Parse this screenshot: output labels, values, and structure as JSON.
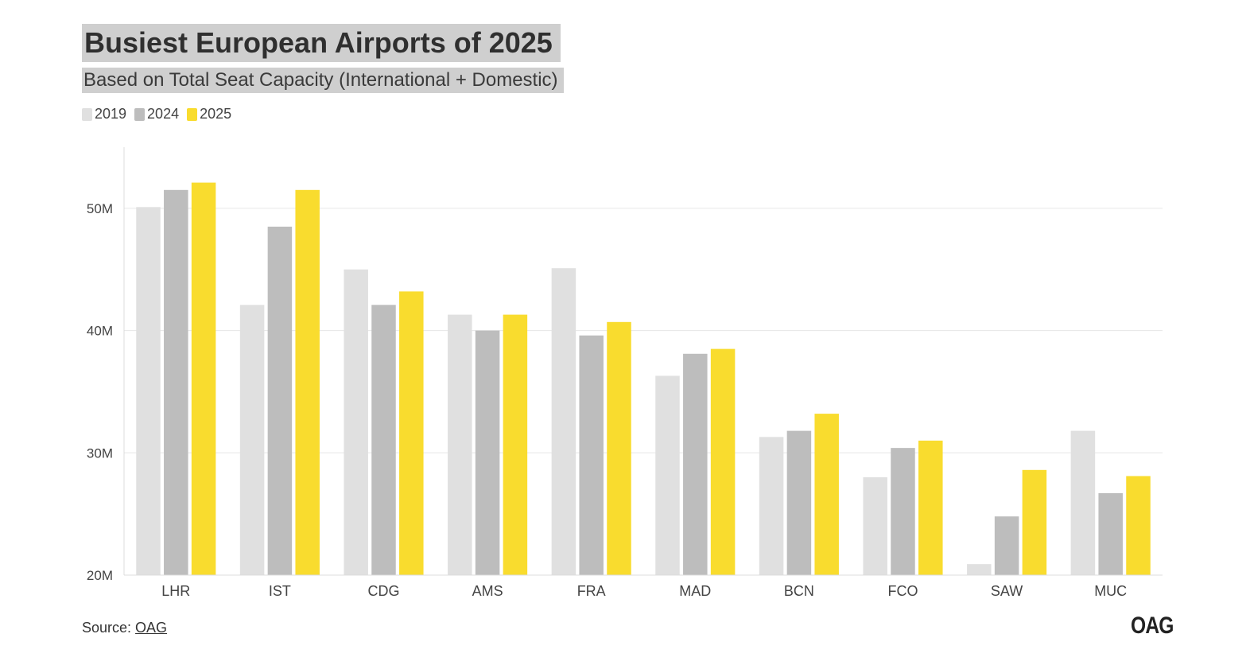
{
  "header": {
    "title": "Busiest European Airports of 2025",
    "subtitle": "Based on Total Seat Capacity (International + Domestic)"
  },
  "legend": [
    {
      "label": "2019",
      "color": "#e0e0e0"
    },
    {
      "label": "2024",
      "color": "#bdbdbd"
    },
    {
      "label": "2025",
      "color": "#f9dc2e"
    }
  ],
  "chart_data": {
    "type": "bar",
    "title": "Busiest European Airports of 2025",
    "subtitle": "Based on Total Seat Capacity (International + Domestic)",
    "xlabel": "",
    "ylabel": "",
    "categories": [
      "LHR",
      "IST",
      "CDG",
      "AMS",
      "FRA",
      "MAD",
      "BCN",
      "FCO",
      "SAW",
      "MUC"
    ],
    "series": [
      {
        "name": "2019",
        "color": "#e0e0e0",
        "values": [
          50.1,
          42.1,
          45.0,
          41.3,
          45.1,
          36.3,
          31.3,
          28.0,
          20.9,
          31.8
        ]
      },
      {
        "name": "2024",
        "color": "#bdbdbd",
        "values": [
          51.5,
          48.5,
          42.1,
          40.0,
          39.6,
          38.1,
          31.8,
          30.4,
          24.8,
          26.7
        ]
      },
      {
        "name": "2025",
        "color": "#f9dc2e",
        "values": [
          52.1,
          51.5,
          43.2,
          41.3,
          40.7,
          38.5,
          33.2,
          31.0,
          28.6,
          28.1
        ]
      }
    ],
    "ylim": [
      20,
      55
    ],
    "yticks": [
      20,
      30,
      40,
      50
    ],
    "ytick_labels": [
      "20M",
      "30M",
      "40M",
      "50M"
    ],
    "grid": true,
    "legend_position": "top-left"
  },
  "footer": {
    "source_prefix": "Source: ",
    "source_link": "OAG",
    "logo_text": "OAG"
  }
}
